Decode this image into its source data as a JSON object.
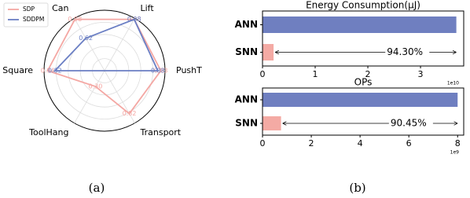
{
  "chart_data": [
    {
      "type": "radar",
      "caption": "(a)",
      "categories": [
        "Can",
        "Lift",
        "PushT",
        "Transport",
        "ToolHang",
        "Square"
      ],
      "rlim": [
        0,
        1
      ],
      "legend": "upper left",
      "series": [
        {
          "name": "SDP",
          "color": "#f4a7a3",
          "values": [
            0.98,
            0.98,
            0.93,
            0.82,
            0.3,
            0.94
          ],
          "value_labels": [
            "0.98",
            "0.98",
            "0.93",
            "0.82",
            "0.30",
            "0.94"
          ]
        },
        {
          "name": "SDDPM",
          "color": "#6b7fc4",
          "values": [
            0.62,
            0.98,
            0.88,
            0,
            0,
            0.82
          ],
          "value_labels": [
            "0.62",
            "0.98",
            "0.88",
            null,
            null,
            "0.82"
          ]
        }
      ]
    },
    {
      "type": "barh",
      "title": "Energy Consumption(μJ)",
      "caption": "(b)",
      "categories": [
        "ANN",
        "SNN"
      ],
      "values": [
        3.68,
        0.21
      ],
      "colors": [
        "#6f7fc0",
        "#f4aaa4"
      ],
      "xlim": [
        0,
        3.82
      ],
      "xticks": [
        0,
        1,
        2,
        3
      ],
      "offset_label": "1e10",
      "annotation": "94.30%"
    },
    {
      "type": "barh",
      "title": "OPs",
      "categories": [
        "ANN",
        "SNN"
      ],
      "values": [
        8.0,
        0.76
      ],
      "colors": [
        "#6f7fc0",
        "#f4aaa4"
      ],
      "xlim": [
        0,
        8.25
      ],
      "xticks": [
        0,
        2,
        4,
        6,
        8
      ],
      "offset_label": "1e9",
      "annotation": "90.45%"
    }
  ]
}
